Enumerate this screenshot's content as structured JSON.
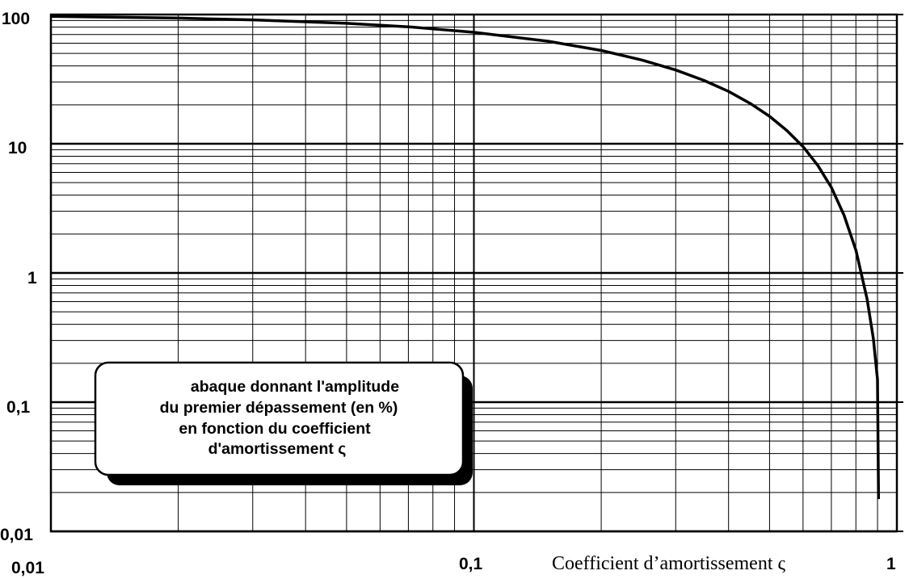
{
  "chart_data": {
    "type": "line",
    "x_scale": "log",
    "y_scale": "log",
    "xlim": [
      0.01,
      1
    ],
    "ylim": [
      0.01,
      100
    ],
    "grid": true,
    "x_ticks": [
      "0,01",
      "0,1",
      "1"
    ],
    "y_ticks": [
      "100",
      "10",
      "1",
      "0,1",
      "0,01"
    ],
    "xlabel": "Coefficient d’amortissement ς",
    "annotation": [
      "abaque donnant l'amplitude",
      "du premier dépassement (en %)",
      "en fonction du coefficient",
      "d'amortissement ς"
    ],
    "series": [
      {
        "x": [
          0.01,
          0.02,
          0.03,
          0.05,
          0.07,
          0.1,
          0.15,
          0.2,
          0.25,
          0.3,
          0.35,
          0.4,
          0.45,
          0.5,
          0.55,
          0.6,
          0.65,
          0.7,
          0.75,
          0.8,
          0.85,
          0.88,
          0.9
        ],
        "y": [
          96.9,
          93.9,
          91.0,
          85.5,
          80.3,
          72.9,
          62.1,
          52.7,
          44.4,
          37.2,
          30.9,
          25.4,
          20.5,
          16.3,
          12.6,
          9.5,
          6.8,
          4.6,
          2.8,
          1.5,
          0.63,
          0.31,
          0.15
        ]
      }
    ]
  }
}
